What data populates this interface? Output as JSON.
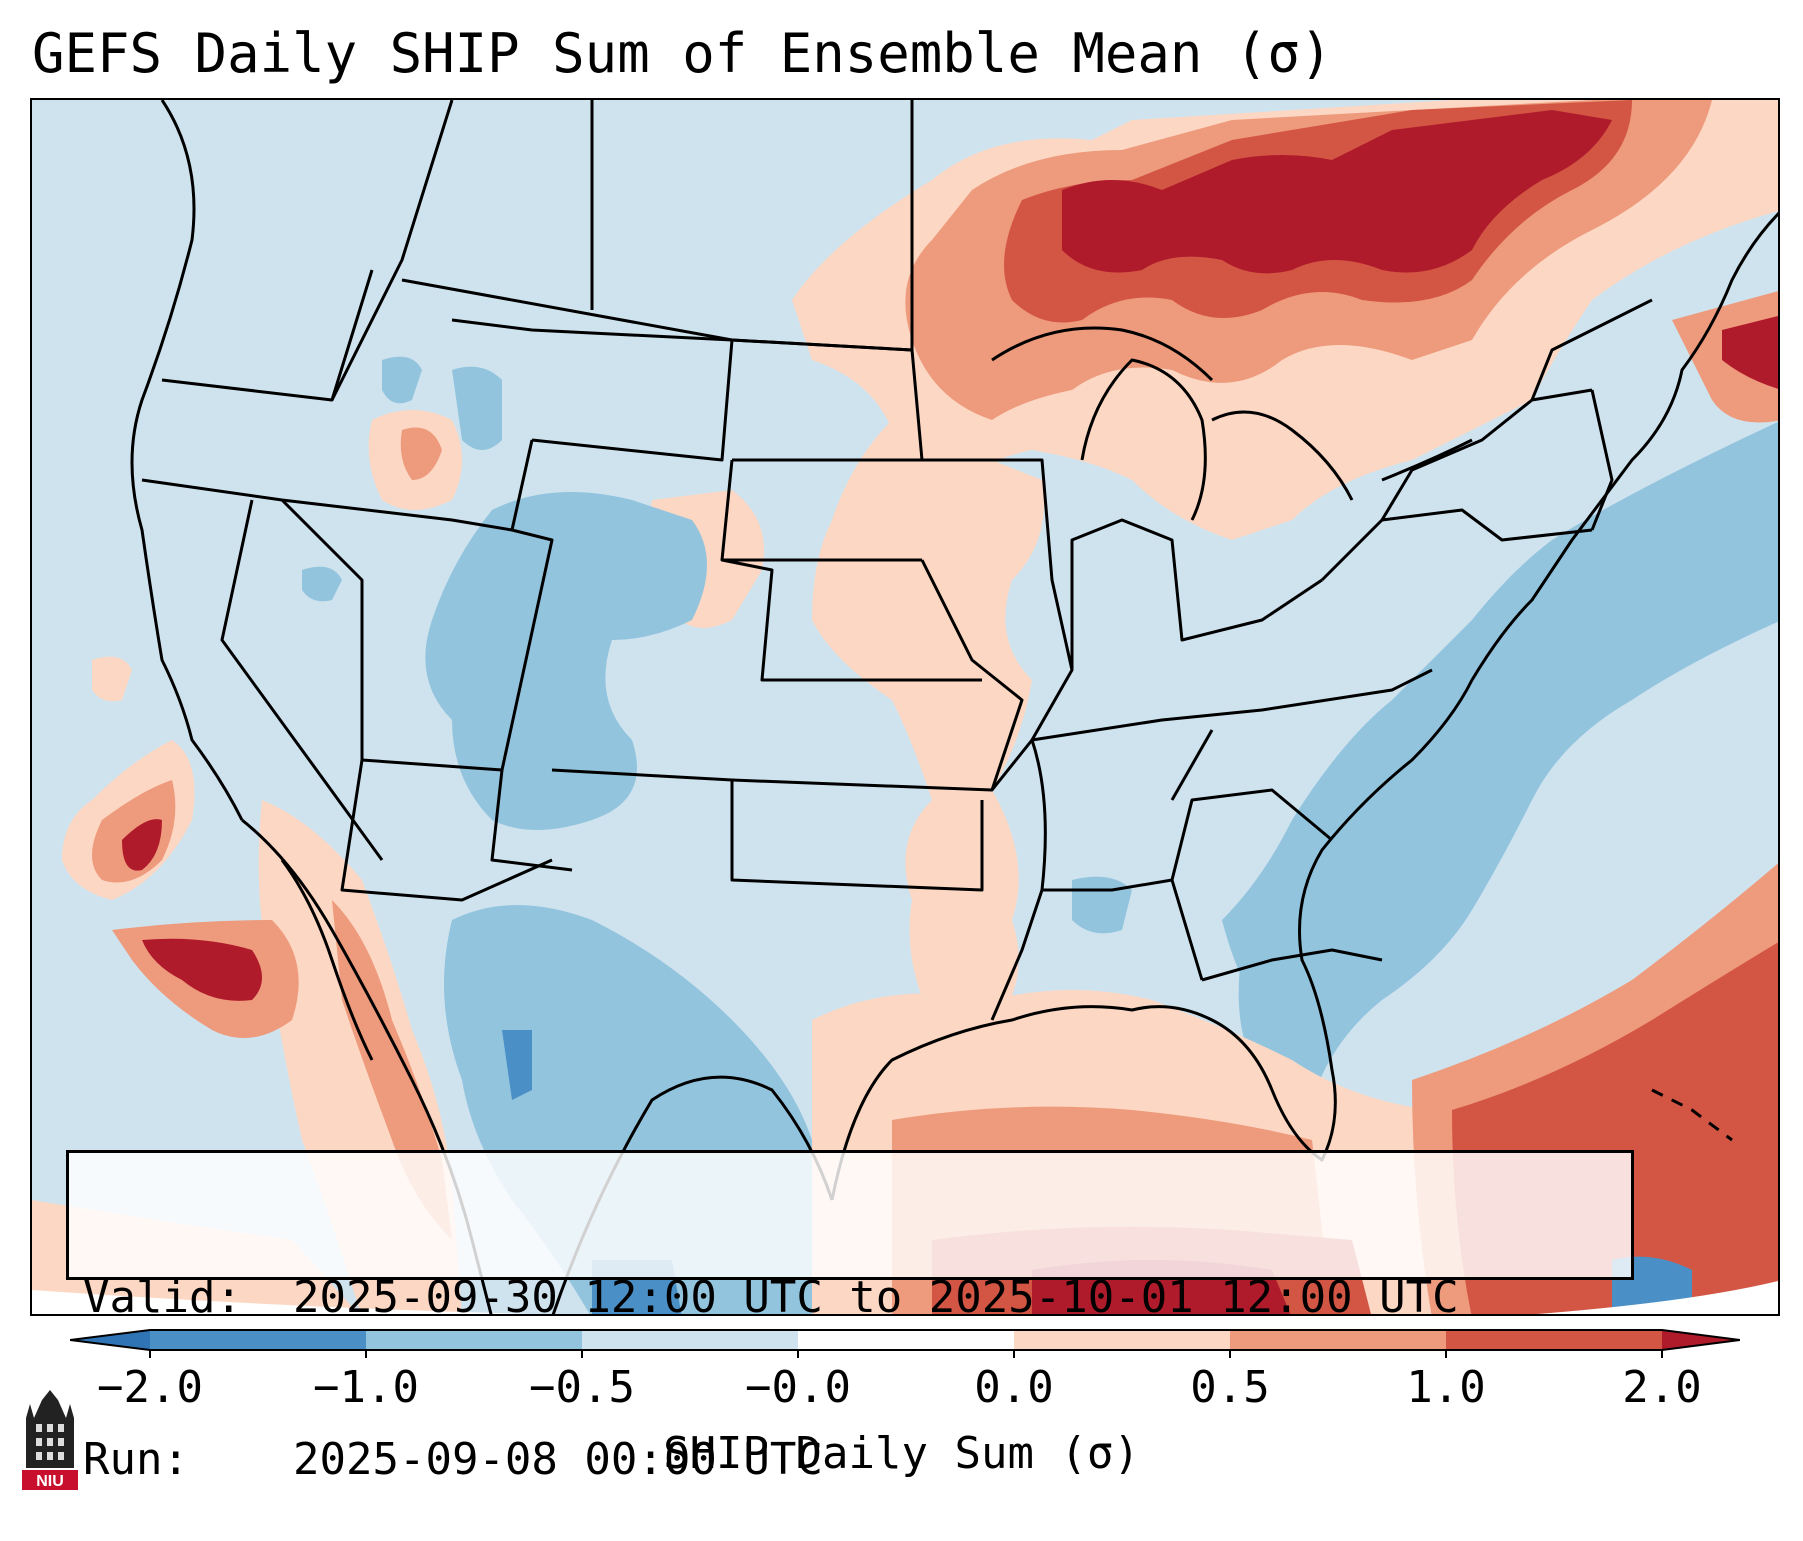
{
  "title": "GEFS Daily SHIP Sum of Ensemble Mean (σ)",
  "info": {
    "valid_label": "Valid:",
    "valid_value": "2025-09-30 12:00 UTC to 2025-10-01 12:00 UTC",
    "run_label": "Run:",
    "run_value": "2025-09-08 00:00 UTC"
  },
  "colorbar": {
    "label": "SHIP Daily Sum (σ)",
    "ticks": [
      "−2.0",
      "−1.0",
      "−0.5",
      "−0.0",
      "0.0",
      "0.5",
      "1.0",
      "2.0"
    ],
    "colors": {
      "below_min": "#2f74b5",
      "bin1": "#4a90c7",
      "bin2": "#93c4de",
      "bin3": "#cfe3ef",
      "bin4": "#ffffff",
      "bin5": "#fcd7c3",
      "bin6": "#ee9a7c",
      "bin7": "#d35544",
      "above_max": "#b01b2c"
    }
  },
  "logo": {
    "text": "NIU"
  }
}
